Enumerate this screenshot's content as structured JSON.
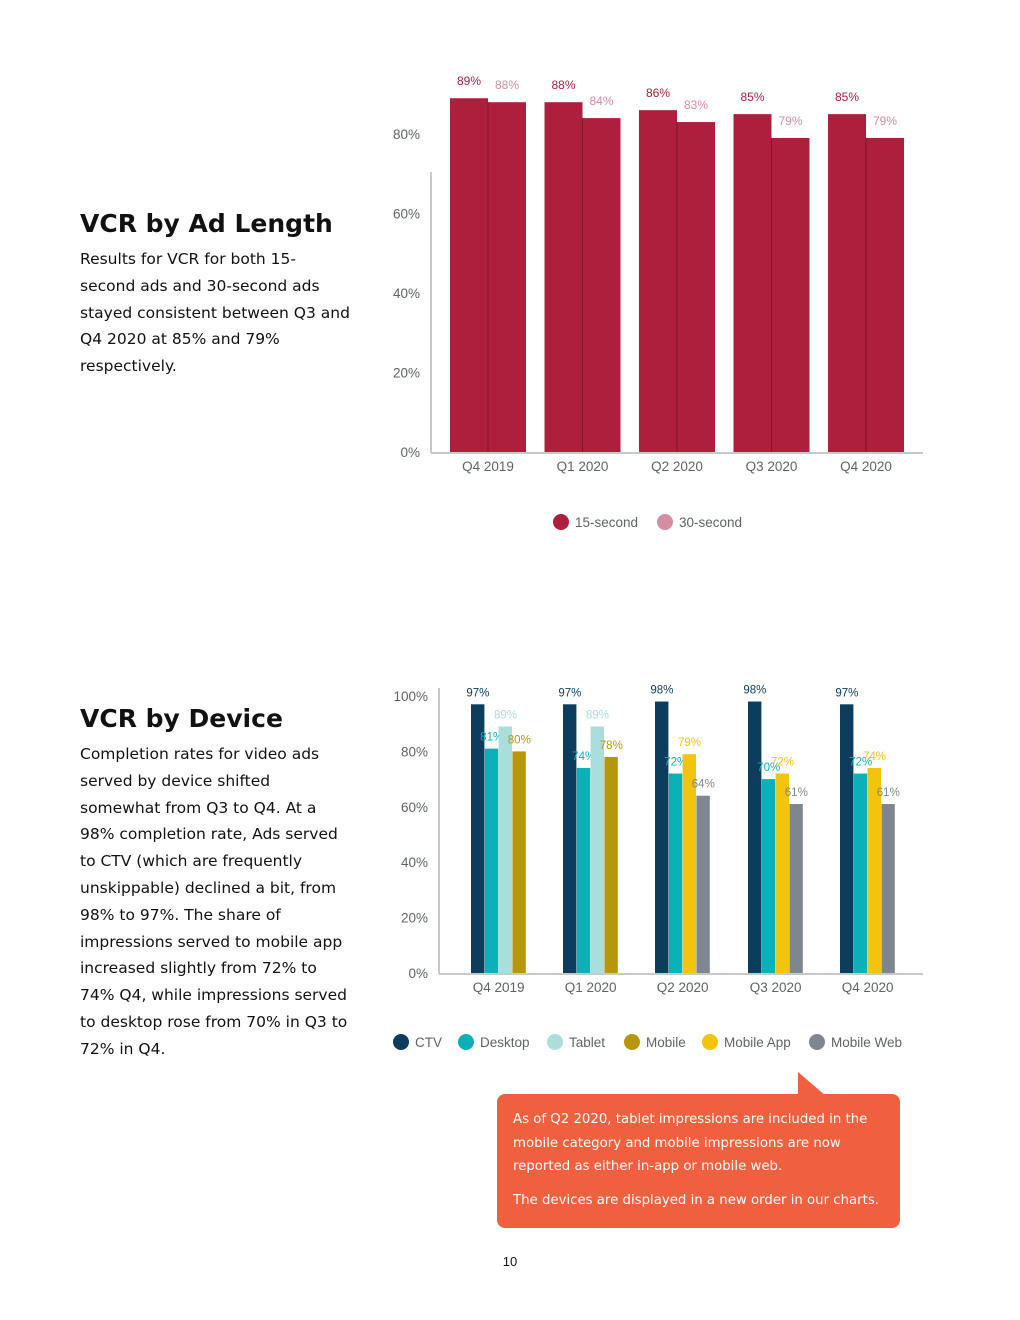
{
  "page_number": "10",
  "colors": {
    "crimson": "#ad1f3d",
    "pink": "#d58d9f",
    "ctv": "#0c3d5c",
    "desktop": "#0bb0b8",
    "tablet": "#a9dedd",
    "mobile": "#b8960c",
    "mobile_app": "#f2c40e",
    "mobile_web": "#7e8790",
    "callout": "#f0603f"
  },
  "section1": {
    "title": "VCR by Ad Length",
    "text": "Results for VCR for both 15-second ads and 30-second ads stayed consistent between Q3 and Q4 2020 at 85% and 79% respectively."
  },
  "section2": {
    "title": "VCR by Device",
    "text": "Completion rates for video ads served by device shifted somewhat from Q3 to Q4. At a 98% completion rate, Ads served to CTV (which are frequently unskippable) declined a bit, from 98% to 97%. The share of impressions served to mobile app increased slightly from 72% to 74% Q4, while impressions served to desktop rose from 70% in Q3 to 72% in Q4."
  },
  "callout": {
    "line1": "As of Q2 2020, tablet impressions are included in the mobile category and mobile impressions are now reported as either in-app or mobile web.",
    "line2": "The devices are displayed in a new order in our charts."
  },
  "chart_data": [
    {
      "type": "bar",
      "title": "VCR by Ad Length",
      "categories": [
        "Q4 2019",
        "Q1 2020",
        "Q2 2020",
        "Q3 2020",
        "Q4 2020"
      ],
      "ylim": [
        0,
        90
      ],
      "yticks": [
        "0%",
        "20%",
        "40%",
        "60%",
        "80%"
      ],
      "ytick_values": [
        0,
        20,
        40,
        60,
        80
      ],
      "legend_position": "bottom",
      "series": [
        {
          "name": "15-second",
          "color": "#ad1f3d",
          "label_color": "#ad1f3d",
          "values": [
            89,
            88,
            86,
            85,
            85
          ],
          "labels": [
            "89%",
            "88%",
            "86%",
            "85%",
            "85%"
          ]
        },
        {
          "name": "30-second",
          "color": "#ad1f3d",
          "label_color": "#d58d9f",
          "legend_color": "#d58d9f",
          "values": [
            88,
            84,
            83,
            79,
            79
          ],
          "labels": [
            "88%",
            "84%",
            "83%",
            "79%",
            "79%"
          ]
        }
      ]
    },
    {
      "type": "bar",
      "title": "VCR by Device",
      "categories": [
        "Q4 2019",
        "Q1 2020",
        "Q2 2020",
        "Q3 2020",
        "Q4 2020"
      ],
      "ylim": [
        0,
        100
      ],
      "yticks": [
        "0%",
        "20%",
        "40%",
        "60%",
        "80%",
        "100%"
      ],
      "ytick_values": [
        0,
        20,
        40,
        60,
        80,
        100
      ],
      "legend_position": "bottom",
      "series": [
        {
          "name": "CTV",
          "color": "#0c3d5c",
          "values": [
            97,
            97,
            98,
            98,
            97
          ],
          "labels": [
            "97%",
            "97%",
            "98%",
            "98%",
            "97%"
          ]
        },
        {
          "name": "Desktop",
          "color": "#0bb0b8",
          "values": [
            81,
            74,
            72,
            70,
            72
          ],
          "labels": [
            "81%",
            "74%",
            "72%",
            "70%",
            "72%"
          ]
        },
        {
          "name": "Tablet",
          "color": "#a9dedd",
          "values": [
            89,
            89,
            null,
            null,
            null
          ],
          "labels": [
            "89%",
            "89%",
            "",
            "",
            ""
          ]
        },
        {
          "name": "Mobile",
          "color": "#b8960c",
          "values": [
            80,
            78,
            null,
            null,
            null
          ],
          "labels": [
            "80%",
            "78%",
            "",
            "",
            ""
          ]
        },
        {
          "name": "Mobile App",
          "color": "#f2c40e",
          "values": [
            null,
            null,
            79,
            72,
            74
          ],
          "labels": [
            "",
            "",
            "79%",
            "72%",
            "74%"
          ]
        },
        {
          "name": "Mobile Web",
          "color": "#7e8790",
          "values": [
            null,
            null,
            64,
            61,
            61
          ],
          "labels": [
            "",
            "",
            "64%",
            "61%",
            "61%"
          ]
        }
      ]
    }
  ]
}
